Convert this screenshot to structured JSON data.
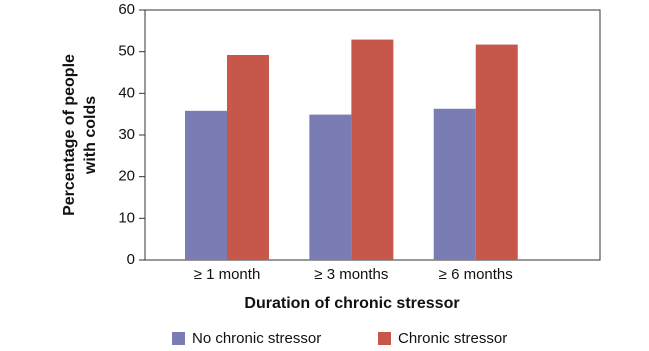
{
  "chart_data": {
    "type": "bar",
    "xlabel": "Duration of chronic stressor",
    "ylabel": [
      "Percentage of people",
      "with colds"
    ],
    "categories": [
      "≥ 1 month",
      "≥ 3 months",
      "≥ 6 months"
    ],
    "series": [
      {
        "name": "No chronic stressor",
        "color": "#7a7db4",
        "values": [
          35.8,
          34.9,
          36.3
        ]
      },
      {
        "name": "Chronic stressor",
        "color": "#c6574a",
        "values": [
          49.2,
          52.9,
          51.7
        ]
      }
    ],
    "ylim": [
      0,
      60
    ],
    "yticks": [
      0,
      10,
      20,
      30,
      40,
      50,
      60
    ],
    "legend": "bottom"
  }
}
